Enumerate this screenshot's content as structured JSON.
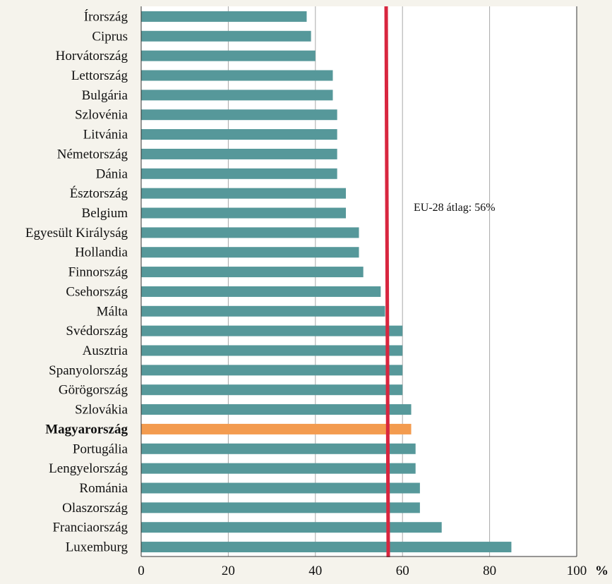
{
  "chart_data": {
    "type": "bar",
    "orientation": "horizontal",
    "categories": [
      "Írország",
      "Ciprus",
      "Horvátország",
      "Lettország",
      "Bulgária",
      "Szlovénia",
      "Litvánia",
      "Németország",
      "Dánia",
      "Észtország",
      "Belgium",
      "Egyesült Királyság",
      "Hollandia",
      "Finnország",
      "Csehország",
      "Málta",
      "Svédország",
      "Ausztria",
      "Spanyolország",
      "Görögország",
      "Szlovákia",
      "Magyarország",
      "Portugália",
      "Lengyelország",
      "Románia",
      "Olaszország",
      "Franciaország",
      "Luxemburg"
    ],
    "values": [
      38,
      39,
      40,
      44,
      44,
      45,
      45,
      45,
      45,
      47,
      47,
      50,
      50,
      51,
      55,
      56,
      60,
      60,
      60,
      60,
      62,
      62,
      63,
      63,
      64,
      64,
      69,
      85
    ],
    "highlight_category": "Magyarország",
    "xlim": [
      0,
      100
    ],
    "xticks": [
      0,
      20,
      40,
      60,
      80,
      100
    ],
    "x_unit_label": "%",
    "grid": "vertical",
    "reference_line": {
      "value": 56,
      "label": "EU-28 átlag: 56%"
    },
    "colors": {
      "bar": "#56989a",
      "highlight_bar": "#f39b4f",
      "reference_line": "#d8263f",
      "grid": "#a8a8a8",
      "background": "#f5f3ec",
      "plot_background": "#ffffff"
    }
  }
}
